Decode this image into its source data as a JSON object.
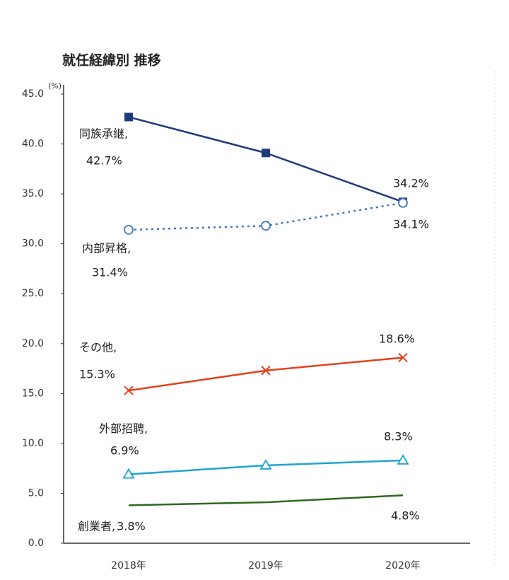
{
  "chart_data": {
    "type": "line",
    "title": "就任経緯別 推移",
    "y_unit": "(%)",
    "categories": [
      "2018年",
      "2019年",
      "2020年"
    ],
    "ylim": [
      0,
      45
    ],
    "yticks": [
      {
        "value": 0,
        "label": "0.0"
      },
      {
        "value": 5,
        "label": "5.0"
      },
      {
        "value": 10,
        "label": "10.0"
      },
      {
        "value": 15,
        "label": "15.0"
      },
      {
        "value": 20,
        "label": "20.0"
      },
      {
        "value": 25,
        "label": "25.0"
      },
      {
        "value": 30,
        "label": "30.0"
      },
      {
        "value": 35,
        "label": "35.0"
      },
      {
        "value": 40,
        "label": "40.0"
      },
      {
        "value": 45,
        "label": "45.0"
      }
    ],
    "grid": false,
    "series": [
      {
        "name": "同族承継,",
        "color": "#1f3a7a",
        "marker": "square",
        "dash": "solid",
        "values": [
          42.7,
          39.1,
          34.2
        ],
        "value_labels": [
          "42.7%",
          null,
          "34.2%"
        ]
      },
      {
        "name": "内部昇格,",
        "color": "#3f78bf",
        "marker": "circle",
        "dash": "dotted",
        "values": [
          31.4,
          31.8,
          34.1
        ],
        "value_labels": [
          "31.4%",
          null,
          "34.1%"
        ]
      },
      {
        "name": "その他,",
        "color": "#e4401c",
        "marker": "x",
        "dash": "solid",
        "values": [
          15.3,
          17.3,
          18.6
        ],
        "value_labels": [
          "15.3%",
          null,
          "18.6%"
        ]
      },
      {
        "name": "外部招聘,",
        "color": "#1ea4d6",
        "marker": "triangle",
        "dash": "solid",
        "values": [
          6.9,
          7.8,
          8.3
        ],
        "value_labels": [
          "6.9%",
          null,
          "8.3%"
        ]
      },
      {
        "name": "創業者,",
        "color": "#2f6a1f",
        "marker": "none",
        "dash": "solid",
        "values": [
          3.8,
          4.1,
          4.8
        ],
        "value_labels": [
          "3.8%",
          null,
          "4.8%"
        ]
      }
    ]
  }
}
